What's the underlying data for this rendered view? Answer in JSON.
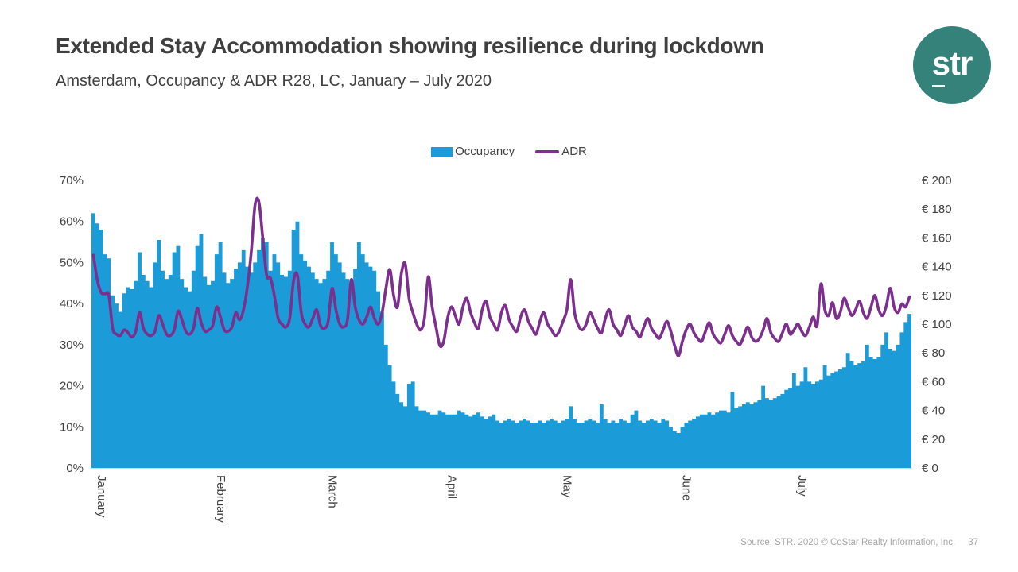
{
  "header": {
    "title": "Extended Stay Accommodation showing resilience during lockdown",
    "subtitle": "Amsterdam, Occupancy & ADR R28, LC, January – July 2020"
  },
  "logo": {
    "text": "str",
    "color": "#35827a"
  },
  "legend": {
    "occupancy": "Occupancy",
    "adr": "ADR"
  },
  "footer": {
    "source": "Source: STR. 2020 © CoStar Realty Information, Inc.",
    "page": "37"
  },
  "colors": {
    "occupancy_bar": "#1b9cd8",
    "adr_line": "#7d2f8e",
    "text": "#404040",
    "axis_line": "#d9d9d9",
    "muted": "#a6a6a6"
  },
  "chart_data": {
    "type": "bar",
    "title": "Amsterdam daily Occupancy (bars, left axis) and ADR (line, right axis), Jan 1 – Jul 31 2020",
    "x_unit": "day",
    "x_range": "2020-01-01 to 2020-07-31",
    "x_tick_labels": [
      "January",
      "February",
      "March",
      "April",
      "May",
      "June",
      "July"
    ],
    "month_start_day_index": [
      0,
      31,
      60,
      91,
      121,
      152,
      182
    ],
    "grid": false,
    "legend_position": "top-center",
    "left_axis": {
      "name": "Occupancy",
      "min": 0,
      "max": 70,
      "ticks": [
        "0%",
        "10%",
        "20%",
        "30%",
        "40%",
        "50%",
        "60%",
        "70%"
      ]
    },
    "right_axis": {
      "name": "ADR",
      "min": 0,
      "max": 200,
      "ticks": [
        "€ 0",
        "€ 20",
        "€ 40",
        "€ 60",
        "€ 80",
        "€ 100",
        "€ 120",
        "€ 140",
        "€ 160",
        "€ 180",
        "€ 200"
      ]
    },
    "series": [
      {
        "name": "Occupancy",
        "type": "bar",
        "axis": "left",
        "unit": "%",
        "values": [
          62,
          59.5,
          58,
          52,
          51,
          42,
          40,
          38,
          42.5,
          44,
          43.5,
          45.5,
          52.5,
          47,
          45.5,
          44,
          50,
          55.5,
          48,
          46,
          47,
          52.5,
          54,
          46,
          44,
          43,
          48,
          54,
          57,
          46.5,
          44.5,
          45.5,
          52,
          55,
          47.5,
          45,
          46,
          48.5,
          50,
          53,
          49,
          47.5,
          50,
          53,
          56,
          55,
          48,
          52,
          50,
          47,
          46.5,
          48,
          58,
          60,
          52,
          50.5,
          49,
          47.5,
          46,
          45,
          46,
          48,
          55,
          52,
          50,
          47.5,
          46,
          45,
          48.5,
          55,
          52,
          50,
          49,
          48,
          43,
          38,
          30,
          25,
          21,
          18,
          16,
          15,
          20.5,
          21,
          15,
          14,
          14,
          13.5,
          13,
          13,
          14,
          13.5,
          13,
          13,
          13,
          14,
          13.5,
          13,
          12.5,
          13,
          13.5,
          12.5,
          12,
          12.5,
          13,
          11.5,
          11,
          11.5,
          12,
          11.5,
          11,
          11.5,
          12,
          11.5,
          11,
          11,
          11.5,
          11,
          11.5,
          12,
          11.5,
          11,
          11.5,
          12,
          15,
          12,
          11,
          11,
          11.5,
          12,
          11.5,
          11,
          15.5,
          12,
          11,
          11.5,
          11,
          12,
          11.5,
          11,
          13,
          14,
          11.5,
          11,
          11.5,
          12,
          11.5,
          11,
          12,
          11.5,
          10,
          9,
          8.5,
          10,
          11,
          11.5,
          12,
          12.5,
          13,
          13,
          13.5,
          13,
          13.5,
          14,
          14,
          13.5,
          18.5,
          14.5,
          15,
          15.5,
          16,
          15.5,
          16,
          16.5,
          20,
          17,
          16.5,
          17,
          17.5,
          18,
          19,
          19.5,
          23,
          20,
          21,
          24.5,
          21,
          20.5,
          21,
          21.5,
          25,
          22.5,
          23,
          23.5,
          24,
          24.5,
          28,
          26,
          25,
          25.5,
          26,
          30,
          27,
          26.5,
          27,
          30,
          33,
          29,
          28.5,
          30,
          33,
          35.5,
          37.5
        ]
      },
      {
        "name": "ADR",
        "type": "line",
        "axis": "right",
        "unit": "EUR",
        "values": [
          148,
          131,
          122,
          121,
          120,
          97,
          93,
          92,
          96,
          94,
          91,
          95,
          108,
          97,
          93,
          92,
          95,
          106,
          100,
          93,
          92,
          96,
          109,
          103,
          95,
          93,
          97,
          111,
          101,
          95,
          96,
          99,
          112,
          105,
          96,
          95,
          98,
          108,
          103,
          110,
          126,
          150,
          183,
          185,
          160,
          134,
          132,
          120,
          104,
          100,
          98,
          104,
          130,
          134,
          108,
          100,
          98,
          104,
          110,
          99,
          97,
          102,
          125,
          110,
          100,
          98,
          103,
          131,
          112,
          103,
          100,
          105,
          112,
          104,
          100,
          108,
          125,
          138,
          120,
          112,
          135,
          142,
          118,
          108,
          100,
          96,
          104,
          133,
          112,
          98,
          85,
          88,
          104,
          112,
          106,
          100,
          112,
          118,
          108,
          101,
          97,
          110,
          116,
          105,
          100,
          96,
          108,
          113,
          103,
          98,
          95,
          105,
          110,
          102,
          97,
          93,
          102,
          108,
          100,
          96,
          92,
          95,
          102,
          110,
          131,
          108,
          99,
          96,
          100,
          108,
          103,
          97,
          94,
          104,
          110,
          100,
          96,
          92,
          99,
          106,
          98,
          95,
          91,
          98,
          104,
          97,
          93,
          90,
          96,
          102,
          95,
          85,
          78,
          88,
          96,
          100,
          94,
          90,
          88,
          95,
          101,
          93,
          89,
          87,
          93,
          99,
          92,
          88,
          86,
          92,
          98,
          91,
          88,
          90,
          96,
          104,
          94,
          90,
          88,
          94,
          100,
          93,
          96,
          100,
          95,
          92,
          98,
          105,
          99,
          128,
          110,
          106,
          115,
          104,
          108,
          118,
          112,
          106,
          110,
          116,
          108,
          104,
          112,
          120,
          110,
          106,
          113,
          125,
          112,
          108,
          114,
          112,
          119
        ]
      }
    ]
  }
}
